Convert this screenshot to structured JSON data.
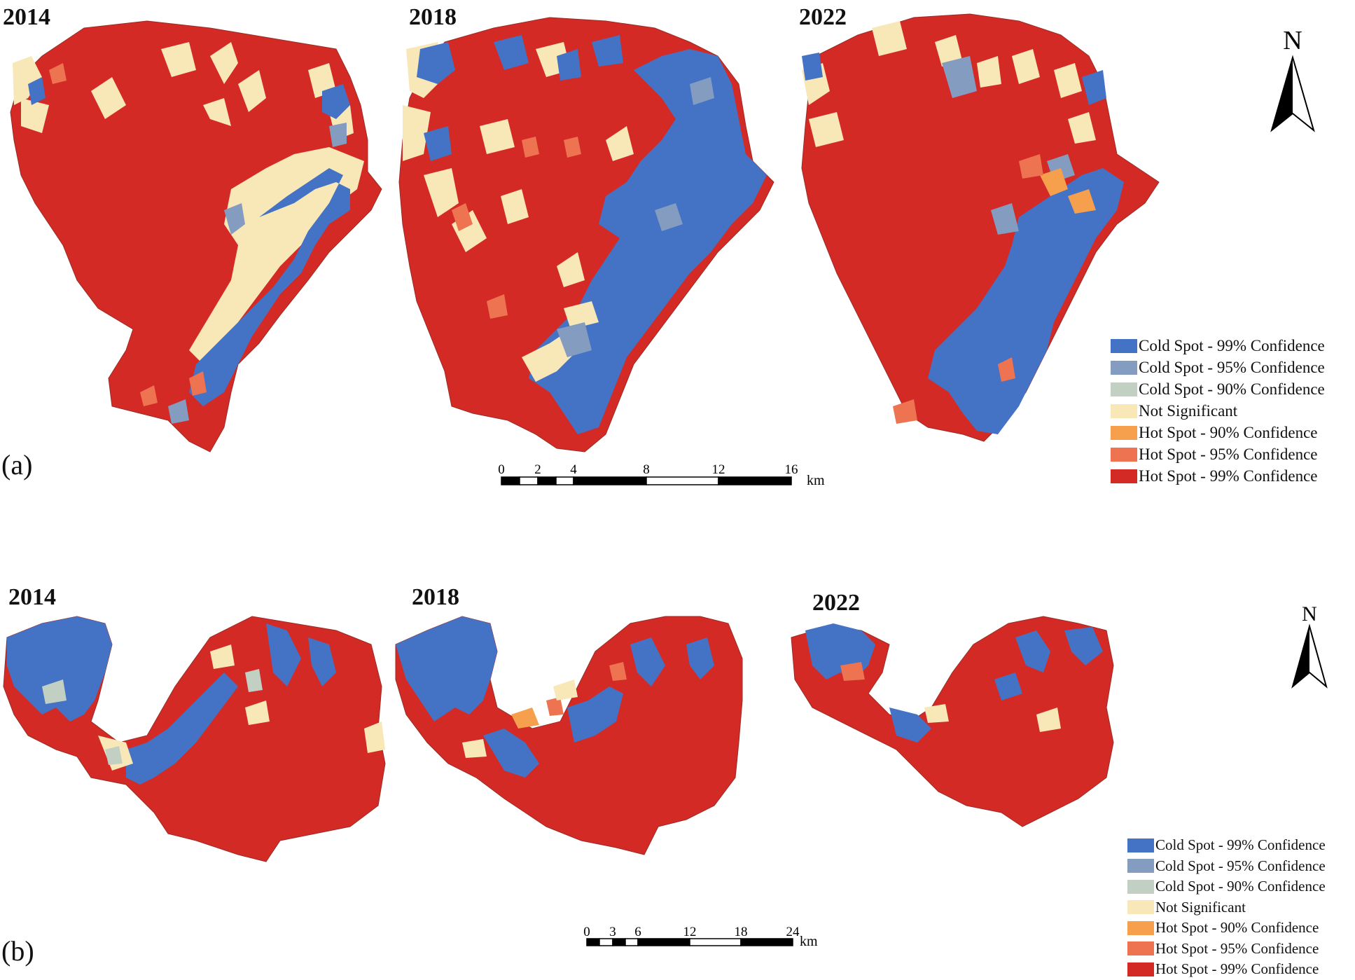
{
  "panels": [
    {
      "label": "(a)",
      "years": [
        "2014",
        "2018",
        "2022"
      ],
      "north_label": "N",
      "scale": {
        "ticks": [
          "0",
          "2",
          "4",
          "8",
          "12",
          "16"
        ],
        "unit": "km"
      },
      "legend": [
        {
          "label": "Cold Spot - 99% Confidence",
          "color": "#4472c4"
        },
        {
          "label": "Cold Spot - 95% Confidence",
          "color": "#849cc0"
        },
        {
          "label": "Cold Spot - 90% Confidence",
          "color": "#c2cfc3"
        },
        {
          "label": "Not Significant",
          "color": "#f8e8b8"
        },
        {
          "label": "Hot Spot - 90% Confidence",
          "color": "#f6a04e"
        },
        {
          "label": "Hot Spot - 95% Confidence",
          "color": "#ee7350"
        },
        {
          "label": "Hot Spot - 99% Confidence",
          "color": "#d42a26"
        }
      ]
    },
    {
      "label": "(b)",
      "years": [
        "2014",
        "2018",
        "2022"
      ],
      "north_label": "N",
      "scale": {
        "ticks": [
          "0",
          "3",
          "6",
          "12",
          "18",
          "24"
        ],
        "unit": "km"
      },
      "legend": [
        {
          "label": "Cold Spot - 99% Confidence",
          "color": "#4472c4"
        },
        {
          "label": "Cold Spot - 95% Confidence",
          "color": "#849cc0"
        },
        {
          "label": "Cold Spot - 90% Confidence",
          "color": "#c2cfc3"
        },
        {
          "label": "Not Significant",
          "color": "#f8e8b8"
        },
        {
          "label": "Hot Spot - 90% Confidence",
          "color": "#f6a04e"
        },
        {
          "label": "Hot Spot - 95% Confidence",
          "color": "#ee7350"
        },
        {
          "label": "Hot Spot - 99% Confidence",
          "color": "#d42a26"
        }
      ]
    }
  ]
}
